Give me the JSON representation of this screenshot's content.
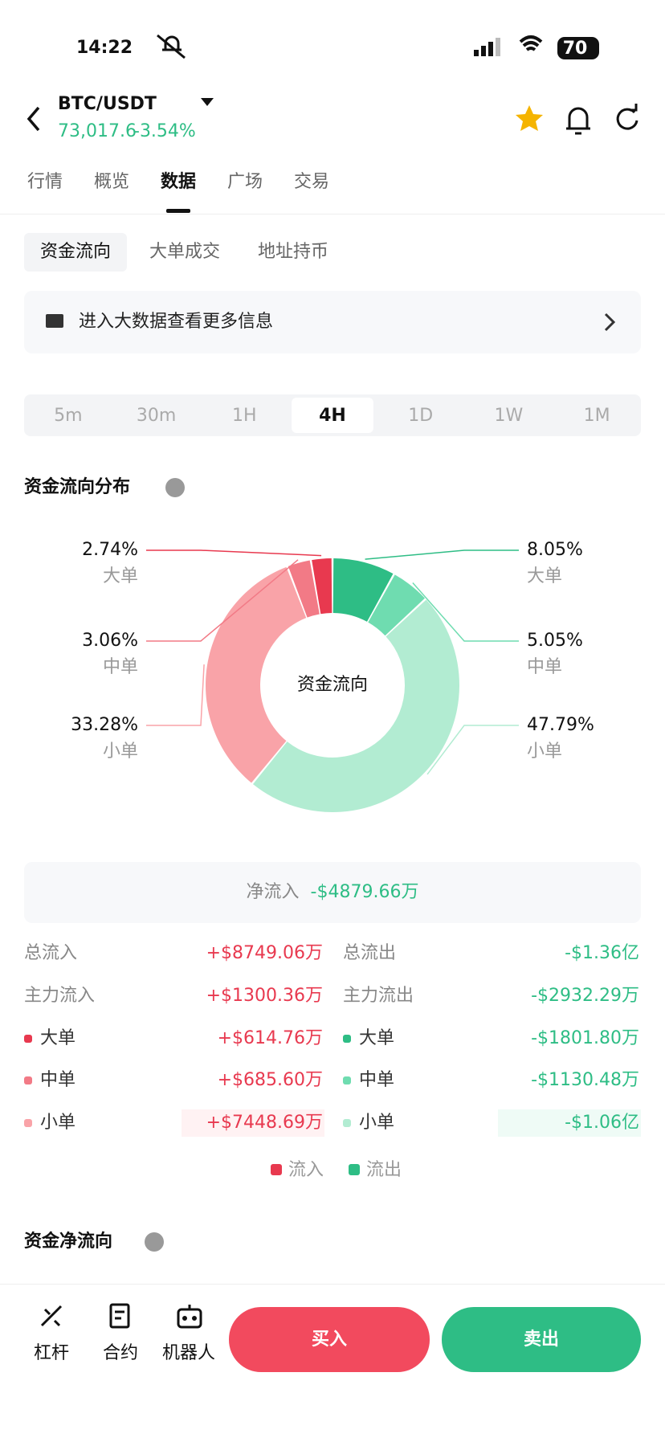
{
  "status": {
    "time": "14:22",
    "battery": "70"
  },
  "header": {
    "pair": "BTC/USDT",
    "price": "73,017.6",
    "change": "-3.54%"
  },
  "tabs": [
    "行情",
    "概览",
    "数据",
    "广场",
    "交易"
  ],
  "subtabs": [
    "资金流向",
    "大单成交",
    "地址持币"
  ],
  "banner": "进入大数据查看更多信息",
  "periods": [
    "5m",
    "30m",
    "1H",
    "4H",
    "1D",
    "1W",
    "1M"
  ],
  "chart_data": {
    "type": "pie",
    "title": "资金流向分布",
    "center_label": "资金流向",
    "categories": [
      "大单",
      "中单",
      "小单"
    ],
    "series": [
      {
        "name": "流入",
        "colors": [
          "#e8394f",
          "#f27a86",
          "#f9a3a8"
        ],
        "values": [
          2.74,
          3.06,
          33.28
        ],
        "value_labels": [
          "2.74%",
          "3.06%",
          "33.28%"
        ]
      },
      {
        "name": "流出",
        "colors": [
          "#2ebd85",
          "#6fdcb0",
          "#b2ecd2"
        ],
        "values": [
          8.05,
          5.05,
          47.79
        ],
        "value_labels": [
          "8.05%",
          "5.05%",
          "47.79%"
        ]
      }
    ]
  },
  "net_flow": {
    "label": "净流入",
    "value": "-$4879.66万"
  },
  "table": {
    "left": [
      {
        "label": "总流入",
        "value": "+$8749.06万"
      },
      {
        "label": "主力流入",
        "value": "+$1300.36万"
      },
      {
        "label": "大单",
        "value": "+$614.76万"
      },
      {
        "label": "中单",
        "value": "+$685.60万"
      },
      {
        "label": "小单",
        "value": "+$7448.69万"
      }
    ],
    "right": [
      {
        "label": "总流出",
        "value": "-$1.36亿"
      },
      {
        "label": "主力流出",
        "value": "-$2932.29万"
      },
      {
        "label": "大单",
        "value": "-$1801.80万"
      },
      {
        "label": "中单",
        "value": "-$1130.48万"
      },
      {
        "label": "小单",
        "value": "-$1.06亿"
      }
    ]
  },
  "section2_title": "资金净流向",
  "bottom": {
    "tools": [
      "杠杆",
      "合约",
      "机器人"
    ],
    "buy": "买入",
    "sell": "卖出"
  }
}
